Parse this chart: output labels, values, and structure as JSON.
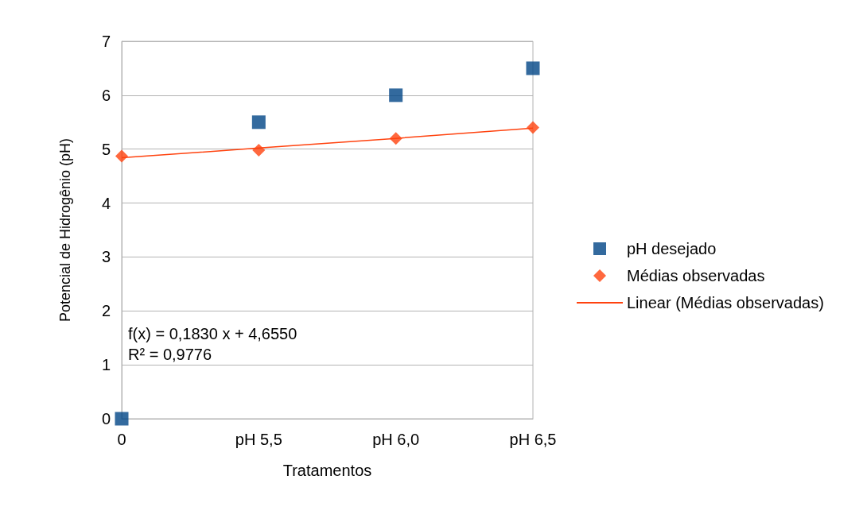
{
  "chart_data": {
    "type": "scatter",
    "xlabel": "Tratamentos",
    "ylabel": "Potencial de Hidrogênio (pH)",
    "categories": [
      "0",
      "pH 5,5",
      "pH 6,0",
      "pH 6,5"
    ],
    "series": [
      {
        "name": "pH desejado",
        "color": "#004586",
        "marker": "square",
        "values": [
          0,
          5.5,
          6.0,
          6.5
        ]
      },
      {
        "name": "Médias observadas",
        "color": "#ff420e",
        "marker": "diamond",
        "values": [
          4.87,
          4.98,
          5.2,
          5.4
        ]
      },
      {
        "name": "Linear (Médias observadas)",
        "type": "line",
        "color": "#ff420e",
        "marker": "none",
        "values": [
          4.84,
          5.02,
          5.2,
          5.39
        ]
      }
    ],
    "ylim": [
      0,
      7
    ],
    "yticks": [
      0,
      1,
      2,
      3,
      4,
      5,
      6,
      7
    ],
    "grid": "y",
    "legend": "right",
    "annotations": [
      "f(x) = 0,1830 x + 4,6550",
      "R² = 0,9776"
    ]
  }
}
